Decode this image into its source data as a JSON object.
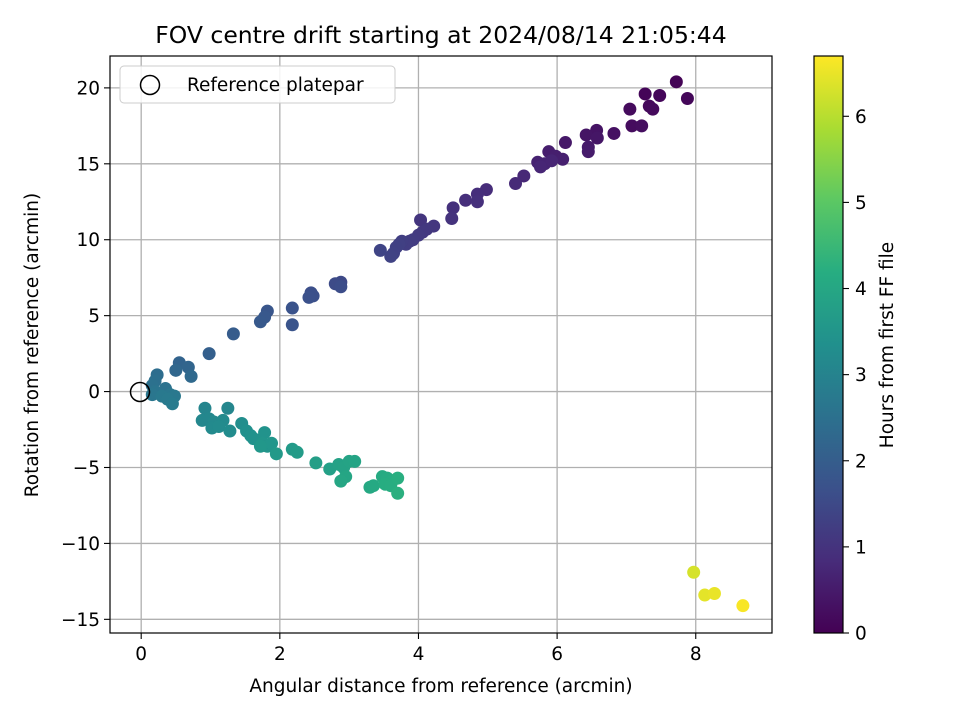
{
  "chart_data": {
    "type": "scatter",
    "title": "FOV centre drift starting at 2024/08/14 21:05:44",
    "xlabel": "Angular distance from reference (arcmin)",
    "ylabel": "Rotation from reference (arcmin)",
    "xlim": [
      -0.45,
      9.1
    ],
    "ylim": [
      -15.9,
      22.1
    ],
    "xticks": [
      0,
      2,
      4,
      6,
      8
    ],
    "yticks": [
      -15,
      -10,
      -5,
      0,
      5,
      10,
      15,
      20
    ],
    "grid": true,
    "legend": {
      "placement": "top-left",
      "entries": [
        "Reference platepar"
      ]
    },
    "reference_point": {
      "x": 0,
      "y": 0
    },
    "colorbar": {
      "label": "Hours from first FF file",
      "colormap": "viridis",
      "range": [
        0,
        6.7
      ],
      "ticks": [
        0,
        1,
        2,
        3,
        4,
        5,
        6
      ]
    },
    "points": [
      {
        "x": 7.72,
        "y": 20.4,
        "c": 0.05
      },
      {
        "x": 7.27,
        "y": 19.6,
        "c": 0.08
      },
      {
        "x": 7.48,
        "y": 19.5,
        "c": 0.1
      },
      {
        "x": 7.88,
        "y": 19.3,
        "c": 0.12
      },
      {
        "x": 7.33,
        "y": 18.8,
        "c": 0.15
      },
      {
        "x": 7.38,
        "y": 18.6,
        "c": 0.18
      },
      {
        "x": 7.05,
        "y": 18.6,
        "c": 0.2
      },
      {
        "x": 7.08,
        "y": 17.5,
        "c": 0.22
      },
      {
        "x": 7.22,
        "y": 17.5,
        "c": 0.25
      },
      {
        "x": 6.82,
        "y": 17.0,
        "c": 0.3
      },
      {
        "x": 6.57,
        "y": 17.2,
        "c": 0.35
      },
      {
        "x": 6.42,
        "y": 16.9,
        "c": 0.38
      },
      {
        "x": 6.58,
        "y": 16.7,
        "c": 0.4
      },
      {
        "x": 6.12,
        "y": 16.4,
        "c": 0.45
      },
      {
        "x": 6.45,
        "y": 16.1,
        "c": 0.48
      },
      {
        "x": 6.45,
        "y": 15.8,
        "c": 0.5
      },
      {
        "x": 5.88,
        "y": 15.8,
        "c": 0.55
      },
      {
        "x": 5.98,
        "y": 15.5,
        "c": 0.58
      },
      {
        "x": 6.08,
        "y": 15.3,
        "c": 0.6
      },
      {
        "x": 5.72,
        "y": 15.1,
        "c": 0.65
      },
      {
        "x": 5.82,
        "y": 15.0,
        "c": 0.68
      },
      {
        "x": 5.92,
        "y": 15.2,
        "c": 0.7
      },
      {
        "x": 5.76,
        "y": 14.8,
        "c": 0.72
      },
      {
        "x": 5.52,
        "y": 14.2,
        "c": 0.75
      },
      {
        "x": 5.4,
        "y": 13.7,
        "c": 0.8
      },
      {
        "x": 4.98,
        "y": 13.3,
        "c": 0.85
      },
      {
        "x": 4.85,
        "y": 13.0,
        "c": 0.88
      },
      {
        "x": 4.68,
        "y": 12.6,
        "c": 0.9
      },
      {
        "x": 4.85,
        "y": 12.5,
        "c": 0.92
      },
      {
        "x": 4.5,
        "y": 12.1,
        "c": 0.95
      },
      {
        "x": 4.48,
        "y": 11.4,
        "c": 1.0
      },
      {
        "x": 4.03,
        "y": 11.3,
        "c": 1.05
      },
      {
        "x": 4.22,
        "y": 10.9,
        "c": 1.08
      },
      {
        "x": 4.12,
        "y": 10.7,
        "c": 1.1
      },
      {
        "x": 4.06,
        "y": 10.5,
        "c": 1.12
      },
      {
        "x": 4.0,
        "y": 10.3,
        "c": 1.15
      },
      {
        "x": 3.92,
        "y": 10.0,
        "c": 1.18
      },
      {
        "x": 3.87,
        "y": 9.9,
        "c": 1.2
      },
      {
        "x": 3.82,
        "y": 9.7,
        "c": 1.22
      },
      {
        "x": 3.76,
        "y": 9.9,
        "c": 1.25
      },
      {
        "x": 3.72,
        "y": 9.7,
        "c": 1.28
      },
      {
        "x": 3.68,
        "y": 9.5,
        "c": 1.3
      },
      {
        "x": 3.64,
        "y": 9.1,
        "c": 1.32
      },
      {
        "x": 3.6,
        "y": 8.9,
        "c": 1.35
      },
      {
        "x": 3.45,
        "y": 9.3,
        "c": 1.38
      },
      {
        "x": 2.88,
        "y": 7.2,
        "c": 1.5
      },
      {
        "x": 2.8,
        "y": 7.1,
        "c": 1.55
      },
      {
        "x": 2.88,
        "y": 6.9,
        "c": 1.58
      },
      {
        "x": 2.45,
        "y": 6.5,
        "c": 1.62
      },
      {
        "x": 2.48,
        "y": 6.3,
        "c": 1.65
      },
      {
        "x": 2.42,
        "y": 6.2,
        "c": 1.68
      },
      {
        "x": 2.18,
        "y": 5.5,
        "c": 1.72
      },
      {
        "x": 2.18,
        "y": 4.4,
        "c": 1.75
      },
      {
        "x": 1.82,
        "y": 5.3,
        "c": 1.8
      },
      {
        "x": 1.78,
        "y": 4.9,
        "c": 1.85
      },
      {
        "x": 1.72,
        "y": 4.6,
        "c": 1.88
      },
      {
        "x": 1.33,
        "y": 3.8,
        "c": 1.95
      },
      {
        "x": 0.98,
        "y": 2.5,
        "c": 2.05
      },
      {
        "x": 0.55,
        "y": 1.9,
        "c": 2.15
      },
      {
        "x": 0.68,
        "y": 1.6,
        "c": 2.2
      },
      {
        "x": 0.5,
        "y": 1.4,
        "c": 2.25
      },
      {
        "x": 0.72,
        "y": 1.0,
        "c": 2.3
      },
      {
        "x": 0.23,
        "y": 1.1,
        "c": 2.4
      },
      {
        "x": 0.2,
        "y": 0.7,
        "c": 2.45
      },
      {
        "x": 0.16,
        "y": 0.4,
        "c": 2.5
      },
      {
        "x": 0.35,
        "y": 0.2,
        "c": 2.55
      },
      {
        "x": 0.2,
        "y": 0.0,
        "c": 2.6
      },
      {
        "x": 0.16,
        "y": -0.2,
        "c": 2.65
      },
      {
        "x": 0.42,
        "y": -0.2,
        "c": 2.68
      },
      {
        "x": 0.48,
        "y": -0.3,
        "c": 2.7
      },
      {
        "x": 0.3,
        "y": -0.3,
        "c": 2.72
      },
      {
        "x": 0.38,
        "y": -0.5,
        "c": 2.75
      },
      {
        "x": 0.45,
        "y": -0.8,
        "c": 2.78
      },
      {
        "x": 0.92,
        "y": -1.1,
        "c": 3.05
      },
      {
        "x": 1.25,
        "y": -1.1,
        "c": 3.08
      },
      {
        "x": 0.88,
        "y": -1.9,
        "c": 3.1
      },
      {
        "x": 0.98,
        "y": -1.8,
        "c": 3.12
      },
      {
        "x": 1.05,
        "y": -2.0,
        "c": 3.15
      },
      {
        "x": 1.18,
        "y": -1.9,
        "c": 3.18
      },
      {
        "x": 1.02,
        "y": -2.4,
        "c": 3.2
      },
      {
        "x": 1.12,
        "y": -2.3,
        "c": 3.22
      },
      {
        "x": 1.28,
        "y": -2.6,
        "c": 3.25
      },
      {
        "x": 1.45,
        "y": -2.1,
        "c": 3.3
      },
      {
        "x": 1.52,
        "y": -2.6,
        "c": 3.35
      },
      {
        "x": 1.58,
        "y": -2.9,
        "c": 3.38
      },
      {
        "x": 1.62,
        "y": -3.1,
        "c": 3.4
      },
      {
        "x": 1.7,
        "y": -3.2,
        "c": 3.42
      },
      {
        "x": 1.78,
        "y": -2.7,
        "c": 3.45
      },
      {
        "x": 1.75,
        "y": -3.4,
        "c": 3.48
      },
      {
        "x": 1.82,
        "y": -3.6,
        "c": 3.5
      },
      {
        "x": 1.88,
        "y": -3.4,
        "c": 3.52
      },
      {
        "x": 1.72,
        "y": -3.6,
        "c": 3.55
      },
      {
        "x": 1.95,
        "y": -4.1,
        "c": 3.6
      },
      {
        "x": 2.18,
        "y": -3.8,
        "c": 3.65
      },
      {
        "x": 2.25,
        "y": -4.0,
        "c": 3.68
      },
      {
        "x": 2.52,
        "y": -4.7,
        "c": 3.75
      },
      {
        "x": 2.72,
        "y": -5.1,
        "c": 3.8
      },
      {
        "x": 2.85,
        "y": -4.8,
        "c": 3.85
      },
      {
        "x": 2.92,
        "y": -5.0,
        "c": 3.88
      },
      {
        "x": 3.0,
        "y": -4.6,
        "c": 3.9
      },
      {
        "x": 3.08,
        "y": -4.6,
        "c": 3.92
      },
      {
        "x": 2.95,
        "y": -5.6,
        "c": 3.95
      },
      {
        "x": 2.88,
        "y": -5.9,
        "c": 3.98
      },
      {
        "x": 3.3,
        "y": -6.3,
        "c": 4.05
      },
      {
        "x": 3.35,
        "y": -6.2,
        "c": 4.08
      },
      {
        "x": 3.48,
        "y": -5.6,
        "c": 4.1
      },
      {
        "x": 3.55,
        "y": -5.7,
        "c": 4.12
      },
      {
        "x": 3.62,
        "y": -5.9,
        "c": 4.15
      },
      {
        "x": 3.52,
        "y": -6.1,
        "c": 4.18
      },
      {
        "x": 3.6,
        "y": -6.2,
        "c": 4.2
      },
      {
        "x": 3.7,
        "y": -5.7,
        "c": 4.22
      },
      {
        "x": 3.7,
        "y": -6.7,
        "c": 4.25
      },
      {
        "x": 7.97,
        "y": -11.9,
        "c": 6.3
      },
      {
        "x": 8.13,
        "y": -13.4,
        "c": 6.45
      },
      {
        "x": 8.27,
        "y": -13.3,
        "c": 6.5
      },
      {
        "x": 8.68,
        "y": -14.1,
        "c": 6.65
      }
    ]
  }
}
